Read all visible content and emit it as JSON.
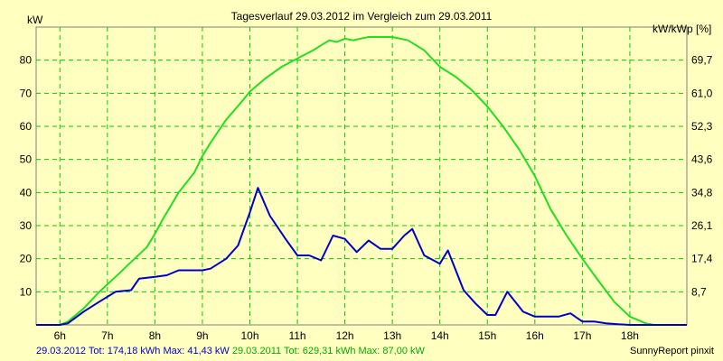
{
  "chart_data": {
    "type": "line",
    "title": "Tagesverlauf 29.03.2012 im Vergleich zum 29.03.2011",
    "ylabel_left": "kW",
    "ylabel_right": "kW/kWp [%]",
    "x_ticks": [
      "6h",
      "7h",
      "8h",
      "9h",
      "10h",
      "11h",
      "12h",
      "13h",
      "14h",
      "15h",
      "16h",
      "17h",
      "18h"
    ],
    "y_ticks_left": [
      "10",
      "20",
      "30",
      "40",
      "50",
      "60",
      "70",
      "80"
    ],
    "y_ticks_right": [
      "8,7",
      "17,4",
      "26,1",
      "34,8",
      "43,6",
      "52,3",
      "61,0",
      "69,7"
    ],
    "xlim": [
      5.5,
      19.2
    ],
    "ylim": [
      0,
      90
    ],
    "grid": true,
    "background": "#FFFFC0",
    "grid_color": "#00CC00",
    "series": [
      {
        "name": "29.03.2012",
        "color": "#0000CC",
        "x": [
          5.5,
          6.0,
          6.17,
          6.5,
          6.83,
          7.17,
          7.5,
          7.67,
          8.0,
          8.25,
          8.5,
          8.75,
          9.0,
          9.17,
          9.5,
          9.75,
          10.0,
          10.17,
          10.42,
          10.75,
          11.0,
          11.25,
          11.5,
          11.75,
          12.0,
          12.25,
          12.5,
          12.75,
          13.0,
          13.25,
          13.42,
          13.67,
          14.0,
          14.17,
          14.5,
          14.75,
          15.0,
          15.17,
          15.42,
          15.75,
          16.0,
          16.25,
          16.5,
          16.75,
          17.0,
          17.25,
          17.5,
          17.75,
          18.0,
          18.25,
          18.5,
          19.2
        ],
        "y": [
          0,
          0,
          0.5,
          4,
          7,
          10,
          10.5,
          14,
          14.5,
          15,
          16.5,
          16.5,
          16.5,
          17,
          20,
          24,
          34,
          41.4,
          33,
          26,
          21,
          21,
          19.5,
          27,
          26,
          22,
          25.5,
          23,
          23,
          27,
          29,
          21,
          18.5,
          22.5,
          10.5,
          6.5,
          3,
          3,
          10,
          4,
          2.5,
          2.5,
          2.5,
          3.5,
          1,
          1,
          0.5,
          0.2,
          0,
          0,
          0,
          0
        ]
      },
      {
        "name": "29.03.2011",
        "color": "#22DD22",
        "x": [
          5.5,
          6.0,
          6.17,
          6.5,
          6.83,
          7.17,
          7.5,
          7.83,
          8.0,
          8.17,
          8.5,
          8.83,
          9.0,
          9.17,
          9.5,
          9.83,
          10.0,
          10.33,
          10.67,
          11.0,
          11.33,
          11.67,
          11.83,
          12.0,
          12.17,
          12.33,
          12.5,
          12.67,
          13.0,
          13.33,
          13.67,
          14.0,
          14.33,
          14.67,
          15.0,
          15.33,
          15.67,
          16.0,
          16.33,
          16.67,
          17.0,
          17.33,
          17.67,
          18.0,
          18.33,
          18.5,
          19.2
        ],
        "y": [
          0,
          0,
          1,
          5,
          10,
          14.5,
          19,
          23.5,
          27.5,
          32,
          40,
          46,
          51,
          55,
          62,
          67.5,
          70.5,
          74.5,
          78,
          80.5,
          83,
          86,
          85.5,
          86.5,
          86,
          86.5,
          87,
          87,
          87,
          86,
          83,
          78,
          75,
          71,
          66,
          60,
          53,
          45,
          35,
          27,
          20,
          13.5,
          7,
          2.5,
          0.5,
          0,
          0
        ]
      }
    ]
  },
  "footer": {
    "series1_text": "29.03.2012 Tot: 174,18 kWh Max: 41,43 kW",
    "series2_text": "29.03.2011 Tot: 629,31 kWh Max: 87,00 kW",
    "credit": "SunnyReport pinxit"
  }
}
